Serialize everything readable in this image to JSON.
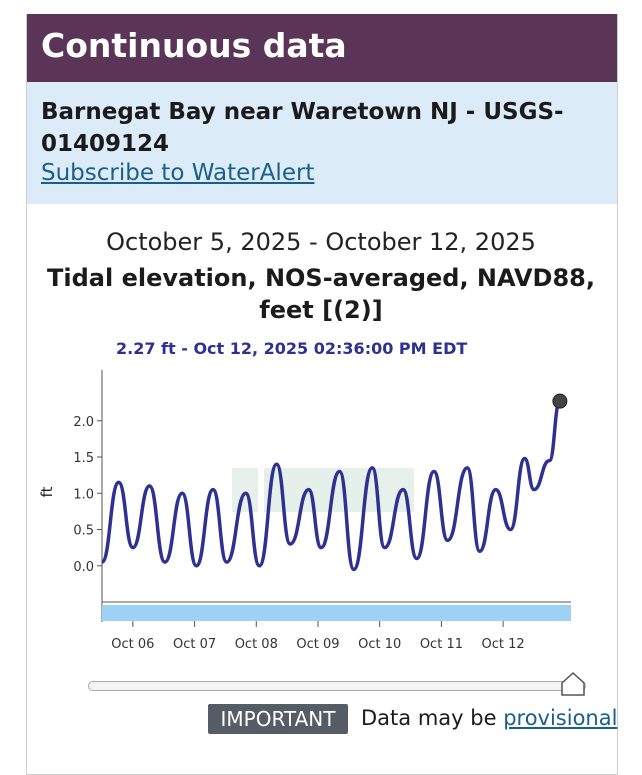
{
  "header": {
    "title": "Continuous data"
  },
  "site": {
    "name": "Barnegat Bay near Waretown NJ - USGS-01409124",
    "subscribe_label": "Subscribe to WaterAlert"
  },
  "graph": {
    "date_range": "October 5, 2025 - October 12, 2025",
    "title": "Tidal elevation, NOS-averaged, NAVD88, feet [(2)]",
    "readout": "2.27 ft - Oct 12, 2025 02:36:00 PM EDT"
  },
  "footer": {
    "badge": "IMPORTANT",
    "text": "Data may be",
    "link": "provisional"
  },
  "colors": {
    "header": "#5b3558",
    "site_band": "#dcebf8",
    "line": "#2e3192",
    "brush": "#9dd2f5"
  },
  "chart_data": {
    "type": "line",
    "ylabel": "ft",
    "ylim": [
      -0.5,
      2.7
    ],
    "yticks": [
      0.0,
      0.5,
      1.0,
      1.5,
      2.0
    ],
    "ytick_labels": [
      "0.0",
      "0.5",
      "1.0",
      "1.5",
      "2.0"
    ],
    "xlim": [
      0,
      7.6
    ],
    "xticks": [
      0.5,
      1.5,
      2.5,
      3.5,
      4.5,
      5.5,
      6.5
    ],
    "xtick_labels": [
      "Oct 06",
      "Oct 07",
      "Oct 08",
      "Oct 09",
      "Oct 10",
      "Oct 11",
      "Oct 12"
    ],
    "series": [
      {
        "x": [
          0.0,
          0.27,
          0.5,
          0.77,
          1.02,
          1.3,
          1.53,
          1.8,
          2.02,
          2.33,
          2.55,
          2.83,
          3.05,
          3.35,
          3.55,
          3.85,
          4.08,
          4.38,
          4.58,
          4.88,
          5.1,
          5.38,
          5.6,
          5.92,
          6.12,
          6.38,
          6.62,
          6.85,
          7.0,
          7.25,
          7.42
        ],
        "y": [
          0.05,
          1.15,
          0.25,
          1.1,
          0.05,
          1.0,
          0.0,
          1.05,
          0.05,
          1.0,
          0.0,
          1.4,
          0.3,
          1.05,
          0.25,
          1.3,
          -0.05,
          1.35,
          0.25,
          1.05,
          0.1,
          1.3,
          0.35,
          1.35,
          0.2,
          1.05,
          0.5,
          1.48,
          1.05,
          1.45,
          2.27
        ]
      }
    ],
    "last_point": {
      "x": 7.42,
      "y": 2.27
    }
  }
}
